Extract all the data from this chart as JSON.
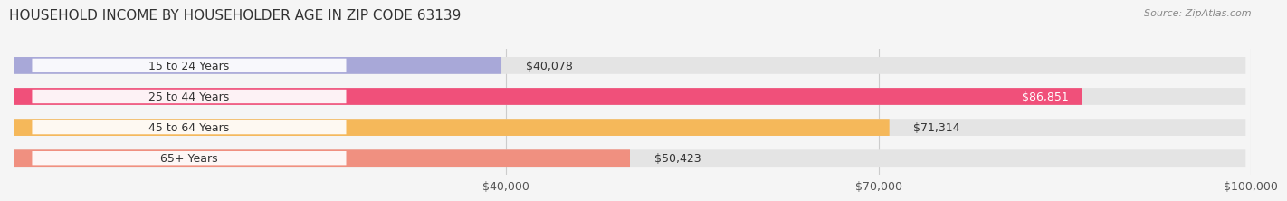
{
  "title": "HOUSEHOLD INCOME BY HOUSEHOLDER AGE IN ZIP CODE 63139",
  "source": "Source: ZipAtlas.com",
  "categories": [
    "15 to 24 Years",
    "25 to 44 Years",
    "45 to 64 Years",
    "65+ Years"
  ],
  "values": [
    40078,
    86851,
    71314,
    50423
  ],
  "bar_colors": [
    "#a8a8d8",
    "#f0507a",
    "#f5b85a",
    "#f09080"
  ],
  "background_color": "#f5f5f5",
  "bar_bg_color": "#e4e4e4",
  "xmin": 0,
  "xmax": 100000,
  "xticks": [
    40000,
    70000,
    100000
  ],
  "xticklabels": [
    "$40,000",
    "$70,000",
    "$100,000"
  ],
  "bar_height": 0.55,
  "figwidth": 14.06,
  "figheight": 2.33,
  "title_fontsize": 11,
  "label_fontsize": 9,
  "value_fontsize": 9,
  "source_fontsize": 8
}
